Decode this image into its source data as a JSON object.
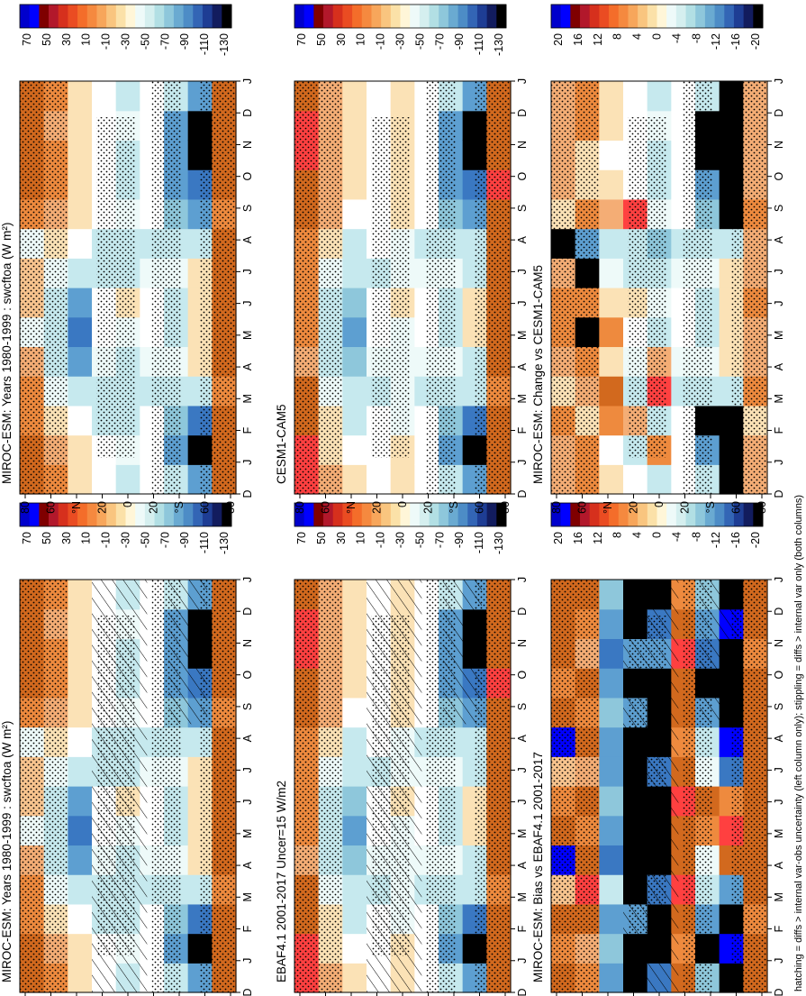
{
  "chart_data": [
    {
      "type": "heatmap",
      "title": "MIROC-ESM: Years 1980-1999 : swcftoa (W m²)",
      "x_axis": [
        "D",
        "J",
        "F",
        "M",
        "A",
        "M",
        "J",
        "J",
        "A",
        "S",
        "O",
        "N",
        "D",
        "J"
      ],
      "y_axis": [
        "80",
        "60",
        "°N",
        "20",
        "0",
        "20",
        "°S",
        "60",
        "80"
      ],
      "colorbar_ticks": [
        "70",
        "50",
        "30",
        "10",
        "-10",
        "-30",
        "-50",
        "-70",
        "-90",
        "-110",
        "-130"
      ],
      "colorbar_colors": [
        "#0000cc",
        "#0000ff",
        "#7f0000",
        "#b2182b",
        "#d6301d",
        "#ea4c22",
        "#f46d2a",
        "#f5893f",
        "#f7a65b",
        "#f9c57f",
        "#fbe1a8",
        "#fff6d8",
        "#eefaf9",
        "#d5efef",
        "#b2dfe4",
        "#8ec7db",
        "#6aaad1",
        "#4d8cc6",
        "#3365b5",
        "#1e3d94",
        "#121c5e",
        "#000000"
      ],
      "hatching": true,
      "stippling": true,
      "levels": [
        [
          "O",
          "O",
          "L",
          "L",
          "P",
          "A",
          "B",
          "B",
          "A",
          "L",
          "O",
          "O",
          "O",
          "O"
        ],
        [
          "L",
          "P",
          "Y",
          "A",
          "C",
          "C",
          "C",
          "A",
          "Y",
          "P",
          "L",
          "L",
          "P",
          "L"
        ],
        [
          "Y",
          "Y",
          "W",
          "C",
          "E",
          "F",
          "E",
          "C",
          "W",
          "Y",
          "Y",
          "Y",
          "Y",
          "Y"
        ],
        [
          "W",
          "W",
          "C",
          "C",
          "A",
          "W",
          "W",
          "C",
          "C",
          "W",
          "W",
          "W",
          "W",
          "W"
        ],
        [
          "C",
          "A",
          "C",
          "C",
          "C",
          "A",
          "Y",
          "C",
          "C",
          "A",
          "C",
          "C",
          "A",
          "C"
        ],
        [
          "W",
          "W",
          "W",
          "C",
          "A",
          "W",
          "W",
          "A",
          "C",
          "W",
          "W",
          "W",
          "W",
          "W"
        ],
        [
          "C",
          "E",
          "D",
          "C",
          "A",
          "C",
          "C",
          "A",
          "C",
          "D",
          "E",
          "E",
          "E",
          "C"
        ],
        [
          "E",
          "K",
          "F",
          "C",
          "Y",
          "Y",
          "Y",
          "Y",
          "C",
          "E",
          "F",
          "K",
          "K",
          "E"
        ],
        [
          "O",
          "O",
          "O",
          "L",
          "O",
          "O",
          "O",
          "O",
          "O",
          "L",
          "O",
          "O",
          "O",
          "O"
        ]
      ]
    },
    {
      "type": "heatmap",
      "title": "MIROC-ESM: Years 1980-1999 : swcftoa (W m²)",
      "x_axis": [
        "D",
        "J",
        "F",
        "M",
        "A",
        "M",
        "J",
        "J",
        "A",
        "S",
        "O",
        "N",
        "D",
        "J"
      ],
      "y_axis": [
        "80",
        "60",
        "°N",
        "20",
        "0",
        "20",
        "°S",
        "60",
        "80"
      ],
      "colorbar_ticks": [
        "70",
        "50",
        "30",
        "10",
        "-10",
        "-30",
        "-50",
        "-70",
        "-90",
        "-110",
        "-130"
      ],
      "colorbar_colors": [
        "#0000cc",
        "#0000ff",
        "#7f0000",
        "#b2182b",
        "#d6301d",
        "#ea4c22",
        "#f46d2a",
        "#f5893f",
        "#f7a65b",
        "#f9c57f",
        "#fbe1a8",
        "#fff6d8",
        "#eefaf9",
        "#d5efef",
        "#b2dfe4",
        "#8ec7db",
        "#6aaad1",
        "#4d8cc6",
        "#3365b5",
        "#1e3d94",
        "#121c5e",
        "#000000"
      ],
      "hatching": false,
      "stippling": true,
      "levels": [
        [
          "O",
          "O",
          "L",
          "L",
          "P",
          "A",
          "B",
          "B",
          "A",
          "L",
          "O",
          "O",
          "O",
          "O"
        ],
        [
          "L",
          "P",
          "Y",
          "A",
          "C",
          "C",
          "C",
          "A",
          "Y",
          "P",
          "L",
          "L",
          "P",
          "L"
        ],
        [
          "Y",
          "Y",
          "W",
          "C",
          "E",
          "F",
          "E",
          "C",
          "W",
          "Y",
          "Y",
          "Y",
          "Y",
          "Y"
        ],
        [
          "W",
          "W",
          "C",
          "C",
          "A",
          "W",
          "W",
          "C",
          "C",
          "W",
          "W",
          "W",
          "W",
          "W"
        ],
        [
          "C",
          "A",
          "C",
          "C",
          "C",
          "A",
          "Y",
          "C",
          "C",
          "A",
          "C",
          "C",
          "A",
          "C"
        ],
        [
          "W",
          "W",
          "W",
          "C",
          "A",
          "W",
          "W",
          "A",
          "C",
          "W",
          "W",
          "W",
          "W",
          "W"
        ],
        [
          "C",
          "E",
          "D",
          "C",
          "A",
          "C",
          "C",
          "A",
          "C",
          "D",
          "E",
          "E",
          "E",
          "C"
        ],
        [
          "E",
          "K",
          "F",
          "C",
          "Y",
          "Y",
          "Y",
          "Y",
          "C",
          "E",
          "F",
          "K",
          "K",
          "E"
        ],
        [
          "O",
          "O",
          "O",
          "L",
          "O",
          "O",
          "O",
          "O",
          "O",
          "L",
          "O",
          "O",
          "O",
          "O"
        ]
      ]
    },
    {
      "type": "heatmap",
      "title": "EBAF4.1 2001-2017 Uncer=15 W/m2",
      "x_axis": [
        "D",
        "J",
        "F",
        "M",
        "A",
        "M",
        "J",
        "J",
        "A",
        "S",
        "O",
        "N",
        "D",
        "J"
      ],
      "y_axis": [
        "80",
        "60",
        "°N",
        "20",
        "0",
        "20",
        "°S",
        "60",
        "80"
      ],
      "colorbar_ticks": [
        "70",
        "50",
        "30",
        "10",
        "-10",
        "-30",
        "-50",
        "-70",
        "-90",
        "-110",
        "-130"
      ],
      "colorbar_colors": [
        "#0000cc",
        "#0000ff",
        "#7f0000",
        "#b2182b",
        "#d6301d",
        "#ea4c22",
        "#f46d2a",
        "#f5893f",
        "#f7a65b",
        "#f9c57f",
        "#fbe1a8",
        "#fff6d8",
        "#eefaf9",
        "#d5efef",
        "#b2dfe4",
        "#8ec7db",
        "#6aaad1",
        "#4d8cc6",
        "#3365b5",
        "#1e3d94",
        "#121c5e",
        "#000000"
      ],
      "hatching": true,
      "stippling": true,
      "levels": [
        [
          "R",
          "R",
          "O",
          "O",
          "P",
          "L",
          "L",
          "L",
          "L",
          "O",
          "O",
          "R",
          "R",
          "O"
        ],
        [
          "P",
          "Y",
          "Y",
          "A",
          "C",
          "C",
          "C",
          "A",
          "Y",
          "P",
          "P",
          "P",
          "P",
          "P"
        ],
        [
          "Y",
          "W",
          "C",
          "C",
          "D",
          "E",
          "D",
          "C",
          "C",
          "W",
          "Y",
          "Y",
          "Y",
          "Y"
        ],
        [
          "W",
          "W",
          "W",
          "C",
          "A",
          "W",
          "W",
          "C",
          "W",
          "W",
          "W",
          "W",
          "W",
          "W"
        ],
        [
          "Y",
          "Y",
          "A",
          "A",
          "A",
          "A",
          "Y",
          "A",
          "A",
          "Y",
          "Y",
          "Y",
          "Y",
          "Y"
        ],
        [
          "W",
          "W",
          "W",
          "C",
          "A",
          "W",
          "W",
          "A",
          "C",
          "W",
          "W",
          "W",
          "W",
          "W"
        ],
        [
          "C",
          "E",
          "D",
          "C",
          "A",
          "C",
          "C",
          "A",
          "C",
          "D",
          "E",
          "E",
          "E",
          "C"
        ],
        [
          "E",
          "K",
          "F",
          "C",
          "C",
          "Y",
          "Y",
          "C",
          "C",
          "E",
          "F",
          "K",
          "K",
          "E"
        ],
        [
          "O",
          "O",
          "O",
          "L",
          "O",
          "O",
          "O",
          "O",
          "O",
          "O",
          "R",
          "O",
          "O",
          "O"
        ]
      ]
    },
    {
      "type": "heatmap",
      "title": "CESM1-CAM5",
      "x_axis": [
        "D",
        "J",
        "F",
        "M",
        "A",
        "M",
        "J",
        "J",
        "A",
        "S",
        "O",
        "N",
        "D",
        "J"
      ],
      "y_axis": [
        "80",
        "60",
        "°N",
        "20",
        "0",
        "20",
        "°S",
        "60",
        "80"
      ],
      "colorbar_ticks": [
        "70",
        "50",
        "30",
        "10",
        "-10",
        "-30",
        "-50",
        "-70",
        "-90",
        "-110",
        "-130"
      ],
      "colorbar_colors": [
        "#0000cc",
        "#0000ff",
        "#7f0000",
        "#b2182b",
        "#d6301d",
        "#ea4c22",
        "#f46d2a",
        "#f5893f",
        "#f7a65b",
        "#f9c57f",
        "#fbe1a8",
        "#fff6d8",
        "#eefaf9",
        "#d5efef",
        "#b2dfe4",
        "#8ec7db",
        "#6aaad1",
        "#4d8cc6",
        "#3365b5",
        "#1e3d94",
        "#121c5e",
        "#000000"
      ],
      "hatching": false,
      "stippling": true,
      "levels": [
        [
          "R",
          "R",
          "O",
          "O",
          "P",
          "L",
          "L",
          "L",
          "L",
          "O",
          "O",
          "R",
          "R",
          "O"
        ],
        [
          "P",
          "Y",
          "Y",
          "A",
          "C",
          "C",
          "C",
          "A",
          "Y",
          "P",
          "P",
          "P",
          "P",
          "P"
        ],
        [
          "Y",
          "W",
          "C",
          "C",
          "D",
          "E",
          "D",
          "C",
          "C",
          "W",
          "Y",
          "Y",
          "Y",
          "Y"
        ],
        [
          "W",
          "W",
          "W",
          "C",
          "A",
          "W",
          "W",
          "C",
          "W",
          "W",
          "W",
          "W",
          "W",
          "W"
        ],
        [
          "Y",
          "Y",
          "A",
          "A",
          "A",
          "A",
          "Y",
          "A",
          "A",
          "Y",
          "Y",
          "Y",
          "Y",
          "Y"
        ],
        [
          "W",
          "W",
          "W",
          "C",
          "A",
          "W",
          "W",
          "A",
          "C",
          "W",
          "W",
          "W",
          "W",
          "W"
        ],
        [
          "C",
          "E",
          "D",
          "C",
          "A",
          "C",
          "C",
          "A",
          "C",
          "D",
          "E",
          "E",
          "E",
          "C"
        ],
        [
          "E",
          "K",
          "F",
          "C",
          "C",
          "Y",
          "Y",
          "C",
          "C",
          "E",
          "F",
          "K",
          "K",
          "E"
        ],
        [
          "O",
          "O",
          "O",
          "L",
          "O",
          "O",
          "O",
          "O",
          "O",
          "O",
          "R",
          "O",
          "O",
          "O"
        ]
      ]
    },
    {
      "type": "heatmap",
      "title": "MIROC-ESM: Bias vs EBAF4.1 2001-2017",
      "x_axis": [
        "D",
        "J",
        "F",
        "M",
        "A",
        "M",
        "J",
        "J",
        "A",
        "S",
        "O",
        "N",
        "D",
        "J"
      ],
      "y_axis": [
        "80",
        "60",
        "°N",
        "20",
        "0",
        "20",
        "°S",
        "60",
        "80"
      ],
      "colorbar_ticks": [
        "20",
        "16",
        "12",
        "8",
        "4",
        "0",
        "-4",
        "-8",
        "-12",
        "-16",
        "-20"
      ],
      "colorbar_colors": [
        "#0000cc",
        "#0000ff",
        "#7f0000",
        "#b2182b",
        "#d6301d",
        "#ea4c22",
        "#f46d2a",
        "#f5893f",
        "#f7a65b",
        "#f9c57f",
        "#fbe1a8",
        "#fff6d8",
        "#eefaf9",
        "#d5efef",
        "#b2dfe4",
        "#8ec7db",
        "#6aaad1",
        "#4d8cc6",
        "#3365b5",
        "#1e3d94",
        "#121c5e",
        "#000000"
      ],
      "hatching": true,
      "stippling": true,
      "levels": [
        [
          "O",
          "L",
          "O",
          "B",
          "N",
          "O",
          "L",
          "B",
          "N",
          "O",
          "L",
          "O",
          "O",
          "O"
        ],
        [
          "L",
          "P",
          "O",
          "R",
          "O",
          "L",
          "O",
          "P",
          "O",
          "L",
          "O",
          "P",
          "L",
          "O"
        ],
        [
          "E",
          "D",
          "E",
          "C",
          "F",
          "E",
          "D",
          "E",
          "E",
          "D",
          "E",
          "F",
          "E",
          "D"
        ],
        [
          "K",
          "K",
          "E",
          "K",
          "K",
          "K",
          "K",
          "K",
          "K",
          "E",
          "K",
          "E",
          "K",
          "K"
        ],
        [
          "F",
          "K",
          "K",
          "F",
          "K",
          "K",
          "K",
          "F",
          "K",
          "K",
          "K",
          "E",
          "F",
          "K"
        ],
        [
          "O",
          "L",
          "O",
          "R",
          "O",
          "O",
          "R",
          "O",
          "L",
          "O",
          "O",
          "R",
          "O",
          "L"
        ],
        [
          "D",
          "K",
          "E",
          "C",
          "A",
          "L",
          "O",
          "A",
          "C",
          "E",
          "K",
          "F",
          "E",
          "D"
        ],
        [
          "K",
          "N",
          "K",
          "E",
          "O",
          "R",
          "L",
          "F",
          "N",
          "K",
          "K",
          "K",
          "N",
          "K"
        ],
        [
          "O",
          "O",
          "L",
          "O",
          "O",
          "O",
          "O",
          "O",
          "O",
          "O",
          "O",
          "L",
          "O",
          "O"
        ]
      ]
    },
    {
      "type": "heatmap",
      "title": "MIROC-ESM: Change vs CESM1-CAM5",
      "x_axis": [
        "D",
        "J",
        "F",
        "M",
        "A",
        "M",
        "J",
        "J",
        "A",
        "S",
        "O",
        "N",
        "D",
        "J"
      ],
      "y_axis": [
        "80",
        "60",
        "°N",
        "20",
        "0",
        "20",
        "°S",
        "60",
        "80"
      ],
      "colorbar_ticks": [
        "20",
        "16",
        "12",
        "8",
        "4",
        "0",
        "-4",
        "-8",
        "-12",
        "-16",
        "-20"
      ],
      "colorbar_colors": [
        "#0000cc",
        "#0000ff",
        "#7f0000",
        "#b2182b",
        "#d6301d",
        "#ea4c22",
        "#f46d2a",
        "#f5893f",
        "#f7a65b",
        "#f9c57f",
        "#fbe1a8",
        "#fff6d8",
        "#eefaf9",
        "#d5efef",
        "#b2dfe4",
        "#8ec7db",
        "#6aaad1",
        "#4d8cc6",
        "#3365b5",
        "#1e3d94",
        "#121c5e",
        "#000000"
      ],
      "hatching": false,
      "stippling": true,
      "levels": [
        [
          "P",
          "P",
          "L",
          "Y",
          "P",
          "L",
          "L",
          "P",
          "K",
          "Y",
          "P",
          "P",
          "P",
          "P"
        ],
        [
          "L",
          "L",
          "Y",
          "P",
          "L",
          "K",
          "L",
          "K",
          "E",
          "L",
          "Y",
          "Y",
          "L",
          "L"
        ],
        [
          "Y",
          "W",
          "L",
          "O",
          "Y",
          "L",
          "Y",
          "A",
          "C",
          "P",
          "Y",
          "W",
          "Y",
          "Y"
        ],
        [
          "W",
          "C",
          "P",
          "C",
          "A",
          "W",
          "Y",
          "C",
          "C",
          "R",
          "W",
          "W",
          "W",
          "W"
        ],
        [
          "C",
          "L",
          "C",
          "R",
          "P",
          "C",
          "A",
          "C",
          "D",
          "A",
          "C",
          "C",
          "A",
          "C"
        ],
        [
          "W",
          "W",
          "W",
          "C",
          "A",
          "W",
          "W",
          "A",
          "C",
          "W",
          "W",
          "W",
          "W",
          "W"
        ],
        [
          "C",
          "E",
          "K",
          "C",
          "A",
          "C",
          "C",
          "A",
          "C",
          "D",
          "E",
          "K",
          "K",
          "C"
        ],
        [
          "K",
          "K",
          "K",
          "C",
          "Y",
          "Y",
          "Y",
          "Y",
          "C",
          "K",
          "K",
          "K",
          "K",
          "K"
        ],
        [
          "P",
          "P",
          "Y",
          "L",
          "P",
          "P",
          "L",
          "P",
          "P",
          "L",
          "P",
          "P",
          "P",
          "P"
        ]
      ]
    }
  ],
  "palette_key": {
    "N": "#0000ff",
    "R": "#ff4040",
    "O": "#d2691e",
    "L": "#ee8a3e",
    "P": "#f4ad75",
    "B": "#f8c48e",
    "Y": "#fbe2b6",
    "W": "#ffffff",
    "A": "#eefaf9",
    "C": "#c6e9ee",
    "D": "#8ec7db",
    "E": "#5d9fd1",
    "F": "#3a78c2",
    "K": "#000000"
  },
  "footer": "hatching = diffs > internal var-obs uncertainty (left column only); stippling = diffs > internal var only (both columns)"
}
